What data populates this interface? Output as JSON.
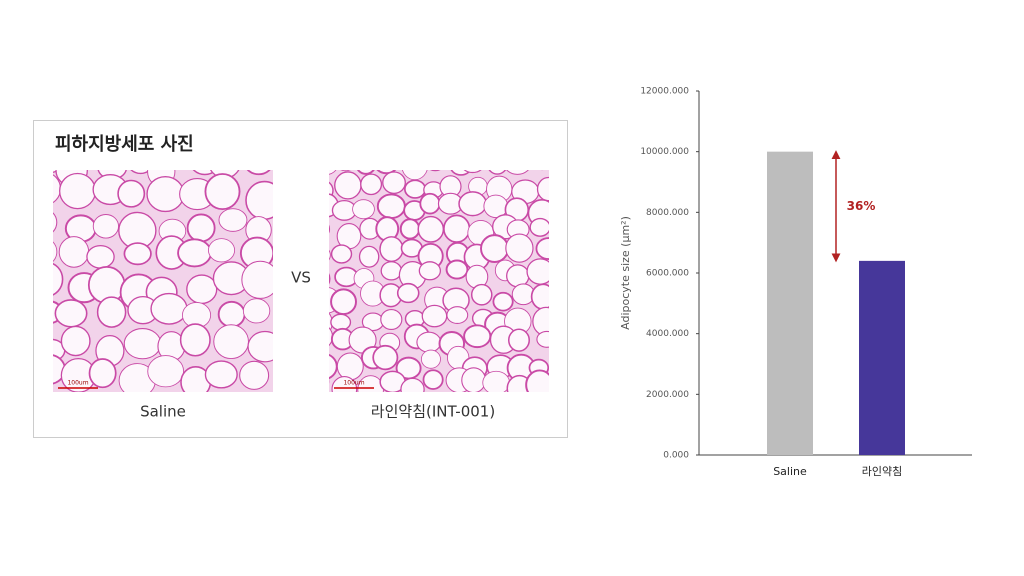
{
  "panel": {
    "title": "피하지방세포 사진",
    "vs": "VS",
    "left_caption": "Saline",
    "right_caption": "라인약침(INT-001)",
    "scale_bar": "100um"
  },
  "chart_data": {
    "type": "bar",
    "y_label": "Adipocyte size (µm²)",
    "categories": [
      "Saline",
      "라인약침"
    ],
    "values": [
      10000,
      6400
    ],
    "colors": [
      "#bdbdbd",
      "#46379a"
    ],
    "ylim": [
      0,
      12000
    ],
    "yticks": [
      {
        "value": 0,
        "label": "0.000"
      },
      {
        "value": 2000,
        "label": "2000.000"
      },
      {
        "value": 4000,
        "label": "4000.000"
      },
      {
        "value": 6000,
        "label": "6000.000"
      },
      {
        "value": 8000,
        "label": "8000.000"
      },
      {
        "value": 10000,
        "label": "10000.000"
      },
      {
        "value": 12000,
        "label": "12000.000"
      }
    ],
    "annotation": "36%",
    "annotation_color": "#b22222"
  }
}
